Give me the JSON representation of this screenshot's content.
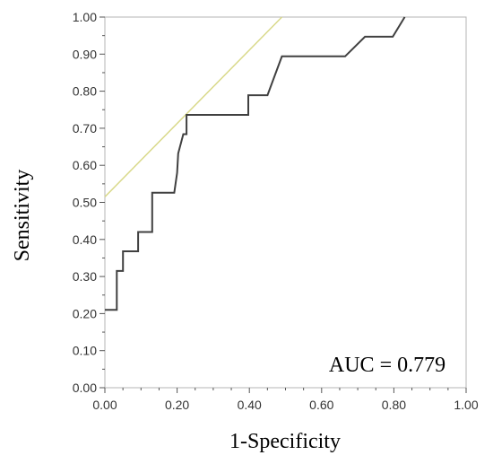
{
  "chart_data": {
    "type": "line",
    "xlabel": "1-Specificity",
    "ylabel": "Sensitivity",
    "xlim": [
      0,
      1
    ],
    "ylim": [
      0,
      1
    ],
    "x_ticks": [
      "0.00",
      "0.20",
      "0.40",
      "0.60",
      "0.80",
      "1.00"
    ],
    "y_ticks": [
      "0.00",
      "0.10",
      "0.20",
      "0.30",
      "0.40",
      "0.50",
      "0.60",
      "0.70",
      "0.80",
      "0.90",
      "1.00"
    ],
    "grid": false,
    "annotation": "AUC = 0.779",
    "series": [
      {
        "color": "#404040",
        "x": [
          0.0,
          0.033,
          0.033,
          0.05,
          0.05,
          0.092,
          0.092,
          0.117,
          0.117,
          0.131,
          0.131,
          0.192,
          0.2,
          0.203,
          0.217,
          0.226,
          0.226,
          0.397,
          0.397,
          0.45,
          0.45,
          0.49,
          0.49,
          0.665,
          0.72,
          0.797,
          0.83
        ],
        "y": [
          0.21,
          0.21,
          0.315,
          0.315,
          0.368,
          0.368,
          0.42,
          0.42,
          0.42,
          0.42,
          0.526,
          0.526,
          0.58,
          0.632,
          0.684,
          0.684,
          0.736,
          0.736,
          0.789,
          0.789,
          0.789,
          0.894,
          0.894,
          0.894,
          0.947,
          0.947,
          1.0
        ]
      },
      {
        "color": "#d9d98a",
        "x": [
          0.0,
          0.49
        ],
        "y": [
          0.515,
          1.0
        ]
      }
    ]
  }
}
